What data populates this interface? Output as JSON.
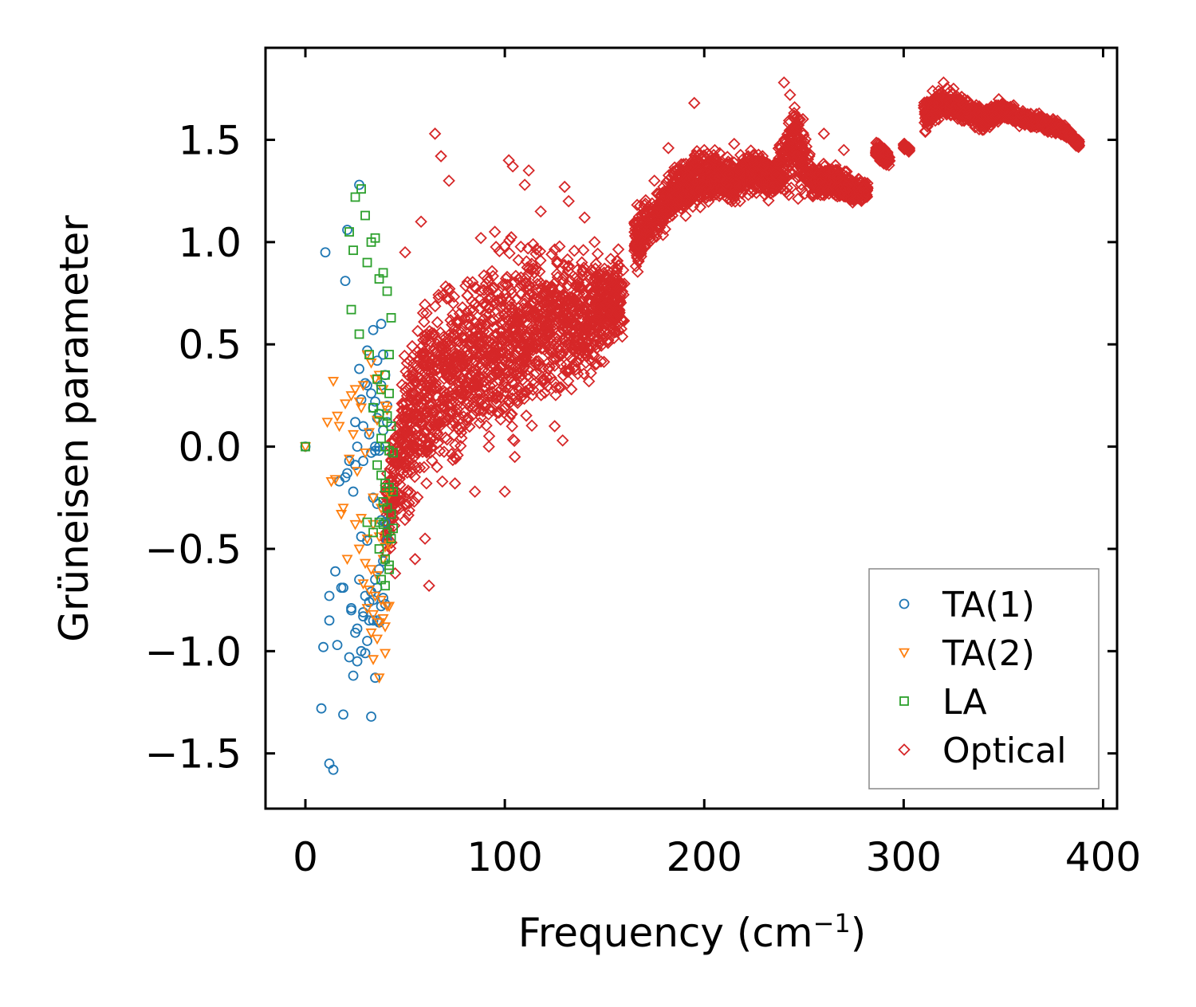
{
  "chart_data": {
    "type": "scatter",
    "title": "",
    "xlabel": "Frequency (cm",
    "xlabel_sup": "−1",
    "xlabel_close": ")",
    "ylabel": "Grüneisen parameter",
    "xlim": [
      -20,
      407
    ],
    "ylim": [
      -1.77,
      1.95
    ],
    "xticks": [
      0,
      100,
      200,
      300,
      400
    ],
    "xtick_labels": [
      "0",
      "100",
      "200",
      "300",
      "400"
    ],
    "yticks": [
      -1.5,
      -1.0,
      -0.5,
      0.0,
      0.5,
      1.0,
      1.5
    ],
    "ytick_labels": [
      "−1.5",
      "−1.0",
      "−0.5",
      "0.0",
      "0.5",
      "1.0",
      "1.5"
    ],
    "legend_position": "lower-right",
    "series": [
      {
        "name": "TA(1)",
        "marker": "circle",
        "color": "#1f77b4",
        "x": [
          0,
          10,
          20,
          21,
          27,
          8,
          12,
          14,
          16,
          19,
          22,
          24,
          26,
          28,
          30,
          31,
          33,
          35,
          36,
          37,
          38,
          39,
          40,
          25,
          29,
          32,
          34,
          18,
          23,
          27,
          30,
          33,
          35,
          37,
          39,
          41,
          20,
          24,
          28,
          31,
          34,
          36,
          38,
          40,
          22,
          26,
          29,
          32,
          35,
          37,
          39,
          41,
          25,
          28,
          31,
          34,
          36,
          38,
          30,
          33,
          35,
          37,
          39,
          41,
          27,
          31,
          34,
          36,
          38,
          40,
          12,
          17,
          21,
          25,
          29,
          33,
          35,
          37,
          40,
          9,
          12,
          15,
          19,
          23,
          26,
          29,
          32,
          34,
          36
        ],
        "y": [
          0.0,
          0.95,
          0.81,
          1.06,
          1.28,
          -1.28,
          -1.55,
          -1.58,
          -0.97,
          -1.31,
          -1.03,
          -1.12,
          -1.05,
          -1.0,
          -1.01,
          -0.95,
          -1.32,
          -1.13,
          -0.85,
          -0.86,
          -0.78,
          -0.74,
          -0.77,
          -0.91,
          -0.83,
          -0.85,
          -0.85,
          -0.69,
          -0.79,
          -0.65,
          -0.73,
          -0.71,
          -0.65,
          -0.6,
          -0.56,
          -0.46,
          -0.15,
          -0.22,
          -0.44,
          -0.46,
          -0.25,
          -0.28,
          -0.36,
          -0.37,
          -0.07,
          0.0,
          0.1,
          0.06,
          0.0,
          -0.02,
          0.08,
          0.12,
          0.12,
          0.23,
          0.3,
          0.19,
          0.14,
          0.3,
          0.31,
          0.26,
          0.22,
          0.16,
          0.45,
          0.2,
          0.38,
          0.47,
          0.57,
          0.42,
          0.6,
          0.35,
          -0.73,
          -0.17,
          -0.13,
          -0.09,
          -0.07,
          -0.03,
          -0.02,
          0.0,
          -0.37,
          -0.98,
          -0.85,
          -0.61,
          -0.69,
          -0.8,
          -0.89,
          -0.81,
          -0.76,
          -0.75,
          -0.69
        ]
      },
      {
        "name": "TA(2)",
        "marker": "triangle-down",
        "color": "#ff7f0e",
        "x": [
          0,
          11,
          14,
          17,
          19,
          21,
          23,
          25,
          27,
          29,
          31,
          33,
          35,
          37,
          39,
          41,
          13,
          16,
          20,
          24,
          28,
          32,
          36,
          40,
          15,
          18,
          22,
          26,
          30,
          34,
          38,
          42,
          25,
          28,
          31,
          34,
          37,
          40,
          27,
          30,
          33,
          36,
          39,
          42,
          29,
          32,
          35,
          38,
          41,
          31,
          34,
          37,
          40,
          33,
          36,
          39,
          42,
          34,
          37,
          40
        ],
        "y": [
          0.0,
          0.12,
          0.32,
          0.1,
          -0.3,
          -0.55,
          0.25,
          0.28,
          0.22,
          0.3,
          0.45,
          0.41,
          0.33,
          0.35,
          0.28,
          0.18,
          -0.17,
          0.15,
          0.21,
          0.06,
          0.19,
          0.07,
          0.13,
          0.2,
          -0.16,
          -0.33,
          -0.06,
          -0.12,
          -0.03,
          -0.25,
          -0.3,
          -0.23,
          -0.38,
          -0.35,
          -0.45,
          -0.38,
          -0.44,
          -0.49,
          -0.5,
          -0.57,
          -0.6,
          -0.63,
          -0.55,
          -0.48,
          -0.67,
          -0.7,
          -0.73,
          -0.75,
          -0.78,
          -0.79,
          -0.82,
          -0.86,
          -0.88,
          -0.91,
          -0.94,
          -0.84,
          -0.78,
          -1.04,
          -1.13,
          -1.01
        ]
      },
      {
        "name": "LA",
        "marker": "square",
        "color": "#2ca02c",
        "x": [
          0,
          22,
          24,
          25,
          28,
          30,
          31,
          33,
          35,
          37,
          39,
          41,
          43,
          23,
          27,
          32,
          36,
          38,
          40,
          42,
          34,
          37,
          39,
          41,
          43,
          38,
          40,
          42,
          44,
          36,
          38,
          40,
          42,
          44,
          39,
          41,
          43,
          37,
          39,
          41,
          43,
          31,
          34,
          37,
          40,
          42,
          38,
          40,
          42,
          44,
          40,
          42
        ],
        "y": [
          0.0,
          1.05,
          0.96,
          1.22,
          1.26,
          1.13,
          0.9,
          1.0,
          1.02,
          0.82,
          0.85,
          0.76,
          0.63,
          0.67,
          0.55,
          0.45,
          0.33,
          0.28,
          0.35,
          0.26,
          0.19,
          0.16,
          0.12,
          0.15,
          0.1,
          0.04,
          0.0,
          -0.02,
          -0.03,
          -0.09,
          -0.14,
          -0.18,
          -0.2,
          -0.22,
          -0.27,
          -0.3,
          -0.33,
          -0.37,
          -0.38,
          -0.42,
          -0.45,
          -0.37,
          -0.42,
          -0.5,
          -0.55,
          -0.6,
          -0.65,
          -0.68,
          -0.58,
          -0.4,
          -0.2,
          0.45
        ]
      },
      {
        "name": "Optical",
        "marker": "diamond",
        "color": "#d62728",
        "segments": [
          {
            "x": [
              40,
              50,
              60,
              70,
              80,
              90,
              100,
              110,
              120,
              130,
              140,
              150,
              160
            ],
            "center": [
              -0.35,
              0.05,
              0.25,
              0.32,
              0.38,
              0.45,
              0.5,
              0.55,
              0.6,
              0.62,
              0.65,
              0.68,
              0.72
            ],
            "halfwidth": [
              0.3,
              0.55,
              0.6,
              0.6,
              0.55,
              0.55,
              0.6,
              0.55,
              0.5,
              0.45,
              0.4,
              0.35,
              0.3
            ]
          },
          {
            "x": [
              165,
              175,
              185,
              195,
              205,
              215,
              225,
              235,
              245,
              255,
              265,
              275,
              282
            ],
            "center": [
              1.0,
              1.1,
              1.25,
              1.3,
              1.32,
              1.3,
              1.35,
              1.3,
              1.5,
              1.3,
              1.3,
              1.25,
              1.25
            ],
            "halfwidth": [
              0.2,
              0.15,
              0.18,
              0.2,
              0.15,
              0.15,
              0.12,
              0.12,
              0.3,
              0.12,
              0.1,
              0.08,
              0.06
            ]
          },
          {
            "x": [
              286,
              293
            ],
            "center": [
              1.45,
              1.4
            ],
            "halfwidth": [
              0.06,
              0.05
            ]
          },
          {
            "x": [
              300,
              303
            ],
            "center": [
              1.47,
              1.45
            ],
            "halfwidth": [
              0.02,
              0.02
            ]
          },
          {
            "x": [
              310,
              320,
              330,
              340,
              350,
              360,
              370,
              380,
              388
            ],
            "center": [
              1.62,
              1.68,
              1.65,
              1.6,
              1.65,
              1.6,
              1.58,
              1.55,
              1.48
            ],
            "halfwidth": [
              0.12,
              0.08,
              0.08,
              0.07,
              0.06,
              0.05,
              0.05,
              0.04,
              0.03
            ]
          }
        ],
        "outliers_x": [
          65,
          68,
          72,
          88,
          95,
          102,
          104,
          110,
          112,
          118,
          130,
          132,
          140,
          145,
          150,
          170,
          175,
          182,
          195,
          200,
          215,
          222,
          240,
          243,
          248,
          260,
          270,
          320,
          325,
          45,
          55,
          62,
          75,
          85,
          92,
          100,
          105,
          125,
          129,
          60,
          50,
          66,
          58
        ],
        "outliers_y": [
          1.53,
          1.42,
          1.3,
          1.02,
          1.05,
          1.4,
          1.37,
          1.28,
          1.35,
          1.15,
          1.27,
          1.2,
          1.12,
          1.0,
          0.87,
          1.18,
          1.3,
          1.46,
          1.68,
          1.45,
          1.48,
          1.42,
          1.78,
          1.72,
          1.6,
          1.53,
          1.45,
          1.78,
          1.75,
          -0.62,
          -0.55,
          -0.68,
          -0.18,
          -0.22,
          0.0,
          -0.22,
          -0.05,
          0.1,
          0.03,
          -0.45,
          0.95,
          -0.1,
          1.1
        ]
      }
    ]
  }
}
